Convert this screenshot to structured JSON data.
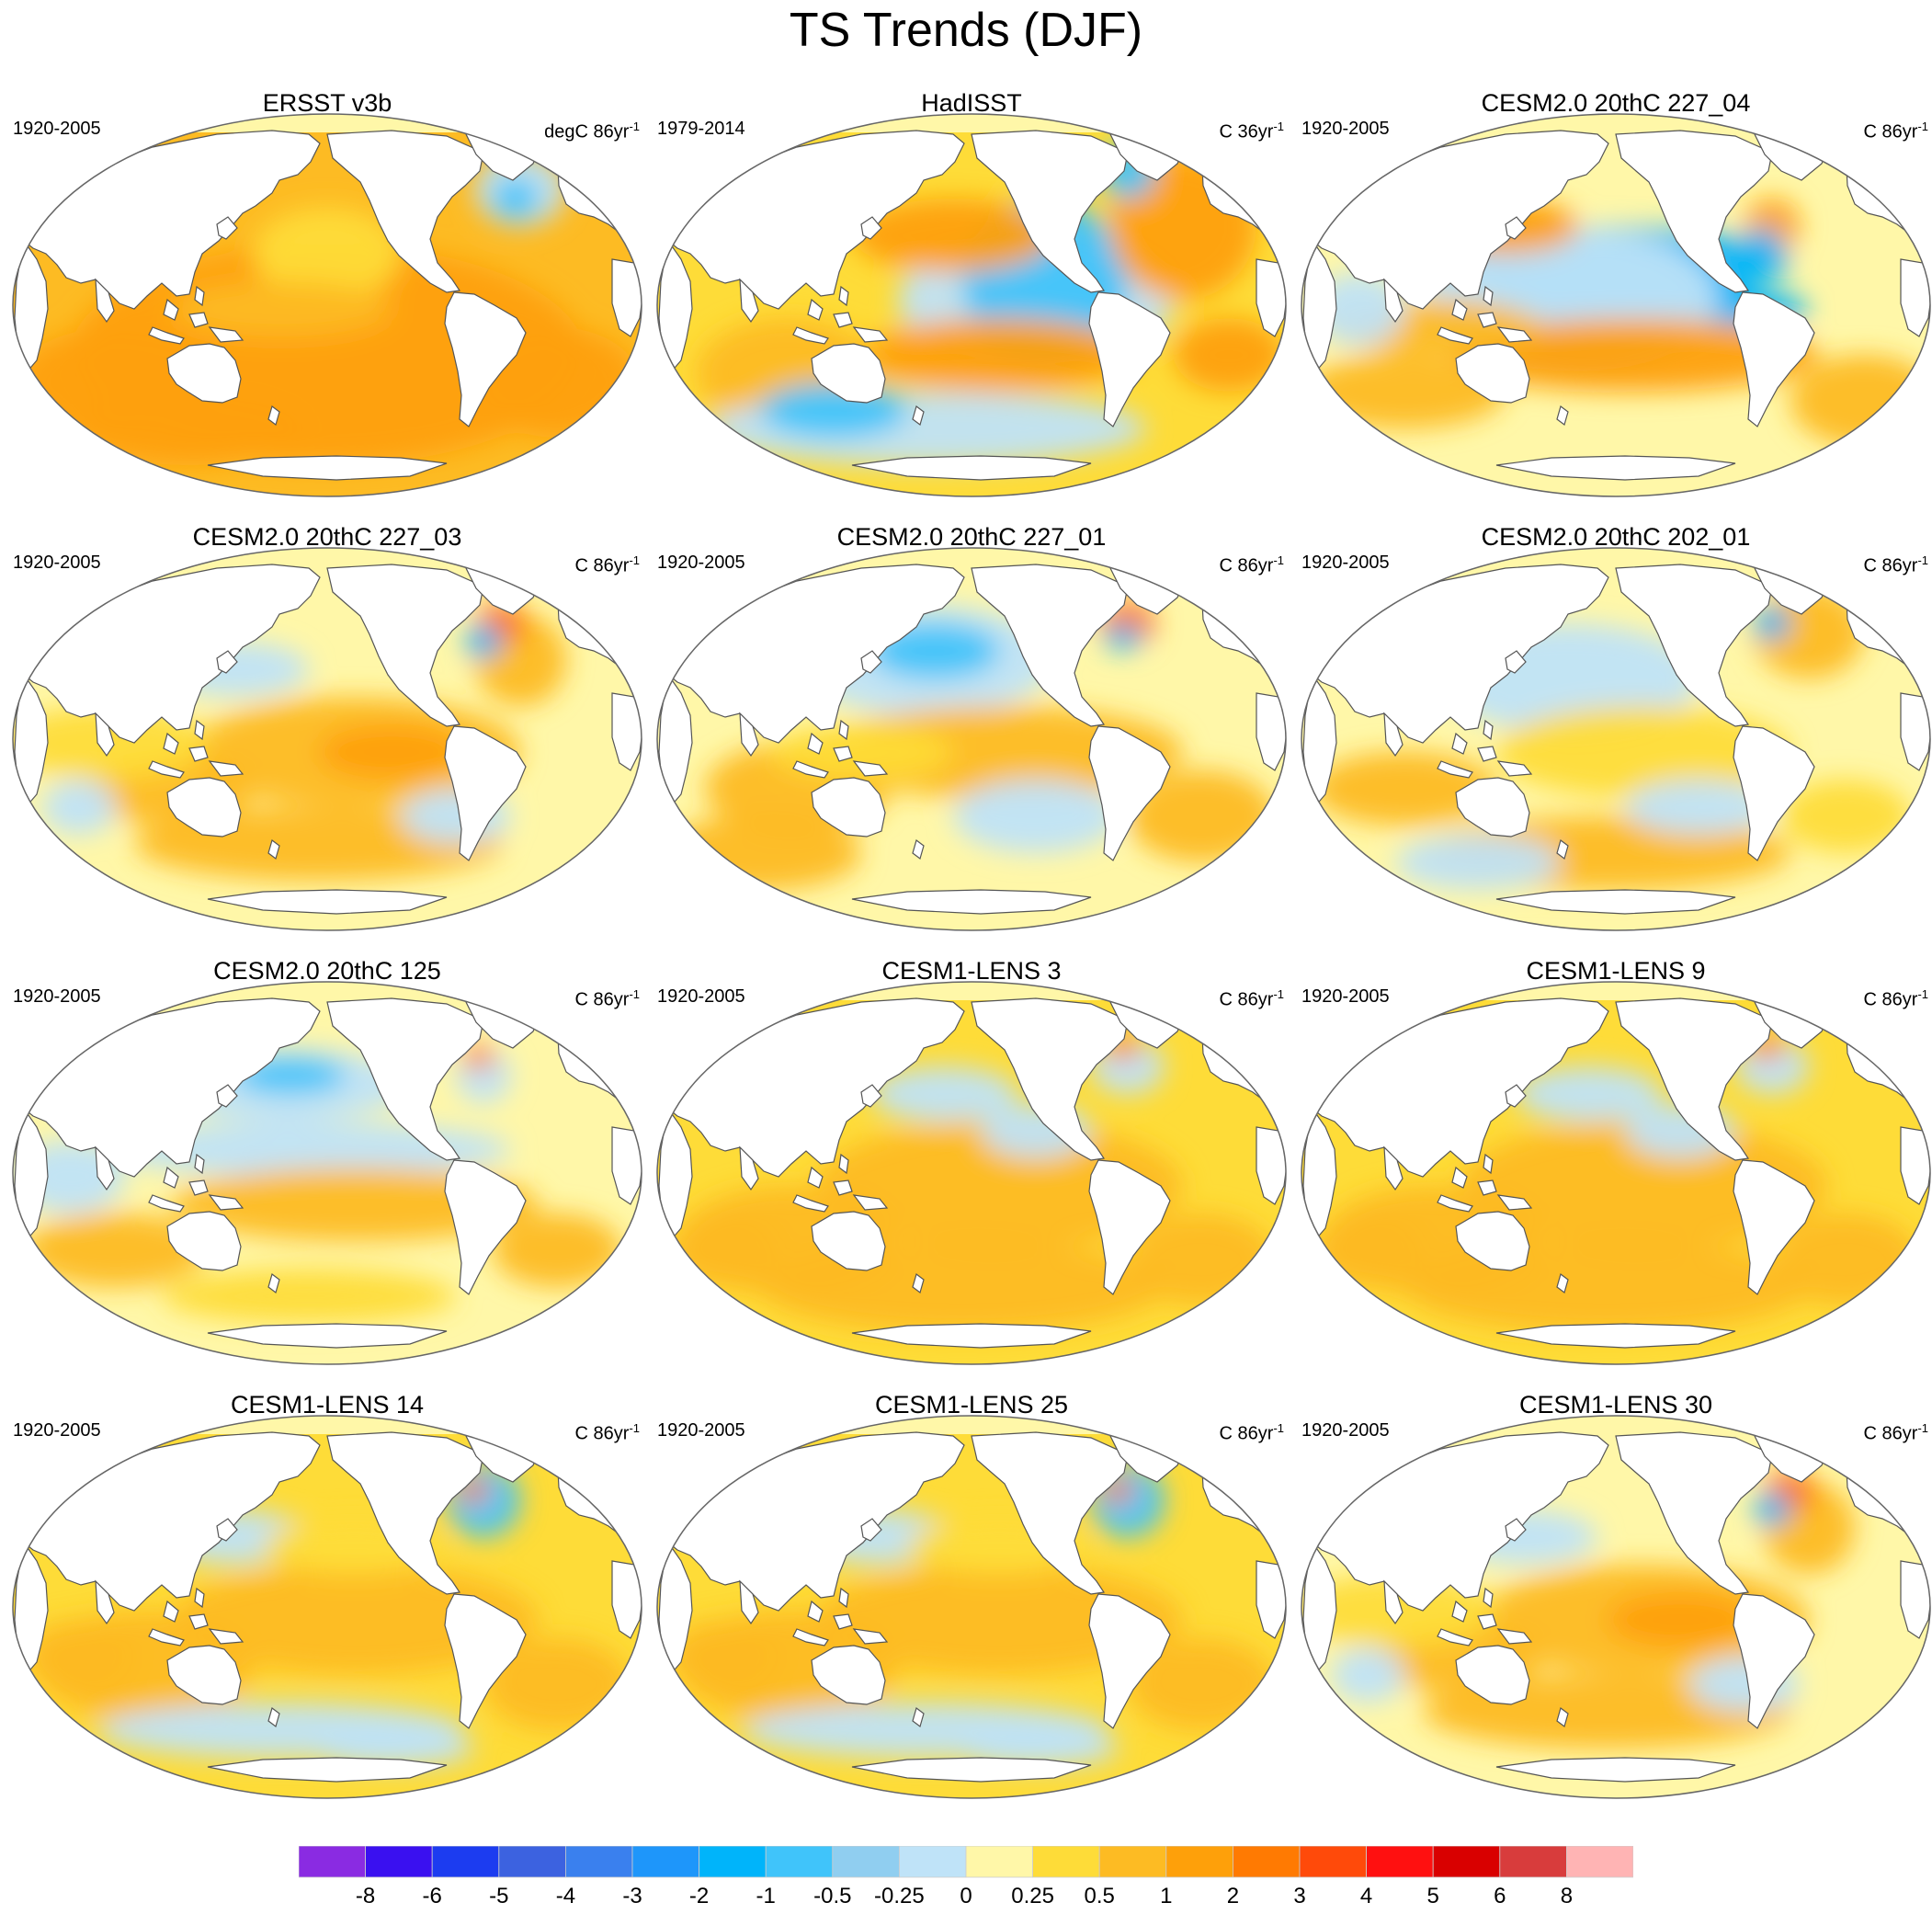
{
  "title": "TS Trends (DJF)",
  "panels": [
    {
      "title": "ERSST v3b",
      "period": "1920-2005",
      "units_prefix": "degC 86yr",
      "units_exp": "-1",
      "pattern": "warm-uniform"
    },
    {
      "title": "HadISST",
      "period": "1979-2014",
      "units_prefix": "C 36yr",
      "units_exp": "-1",
      "pattern": "la-nina"
    },
    {
      "title": "CESM2.0 20thC 227_04",
      "period": "1920-2005",
      "units_prefix": "C 86yr",
      "units_exp": "-1",
      "pattern": "cold-pacific"
    },
    {
      "title": "CESM2.0 20thC 227_03",
      "period": "1920-2005",
      "units_prefix": "C 86yr",
      "units_exp": "-1",
      "pattern": "mixed"
    },
    {
      "title": "CESM2.0 20thC 227_01",
      "period": "1920-2005",
      "units_prefix": "C 86yr",
      "units_exp": "-1",
      "pattern": "north-pacific-cold"
    },
    {
      "title": "CESM2.0 20thC 202_01",
      "period": "1920-2005",
      "units_prefix": "C 86yr",
      "units_exp": "-1",
      "pattern": "weak"
    },
    {
      "title": "CESM2.0 20thC 125",
      "period": "1920-2005",
      "units_prefix": "C 86yr",
      "units_exp": "-1",
      "pattern": "mixed-cold"
    },
    {
      "title": "CESM1-LENS 3",
      "period": "1920-2005",
      "units_prefix": "C 86yr",
      "units_exp": "-1",
      "pattern": "warm"
    },
    {
      "title": "CESM1-LENS 9",
      "period": "1920-2005",
      "units_prefix": "C 86yr",
      "units_exp": "-1",
      "pattern": "warm"
    },
    {
      "title": "CESM1-LENS 14",
      "period": "1920-2005",
      "units_prefix": "C 86yr",
      "units_exp": "-1",
      "pattern": "warm-south-cold"
    },
    {
      "title": "CESM1-LENS 25",
      "period": "1920-2005",
      "units_prefix": "C 86yr",
      "units_exp": "-1",
      "pattern": "warm-south-cold"
    },
    {
      "title": "CESM1-LENS 30",
      "period": "1920-2005",
      "units_prefix": "C 86yr",
      "units_exp": "-1",
      "pattern": "mixed"
    }
  ],
  "chart_data": {
    "type": "heatmap",
    "title": "TS Trends (DJF)",
    "projection": "Robinson global maps, Pacific-centred",
    "layout": "4 rows x 3 columns",
    "colorbar": {
      "labels": [
        "-8",
        "-6",
        "-5",
        "-4",
        "-3",
        "-2",
        "-1",
        "-0.5",
        "-0.25",
        "0",
        "0.25",
        "0.5",
        "1",
        "2",
        "3",
        "4",
        "5",
        "6",
        "8"
      ],
      "colors": [
        "#8a2be2",
        "#3a10f0",
        "#1c3cf0",
        "#3c62e0",
        "#3a80ee",
        "#1e96fa",
        "#00b4fa",
        "#40c4fa",
        "#90cef0",
        "#bfe3f8",
        "#fff7a8",
        "#fedc38",
        "#fdbb23",
        "#fea00a",
        "#ff7a02",
        "#ff4a0a",
        "#ff1010",
        "#d90000",
        "#d83c3c",
        "#ffb4b4"
      ]
    },
    "colors": {
      "land": "#ffffff",
      "coast": "#555555",
      "frame": "#666666"
    }
  }
}
